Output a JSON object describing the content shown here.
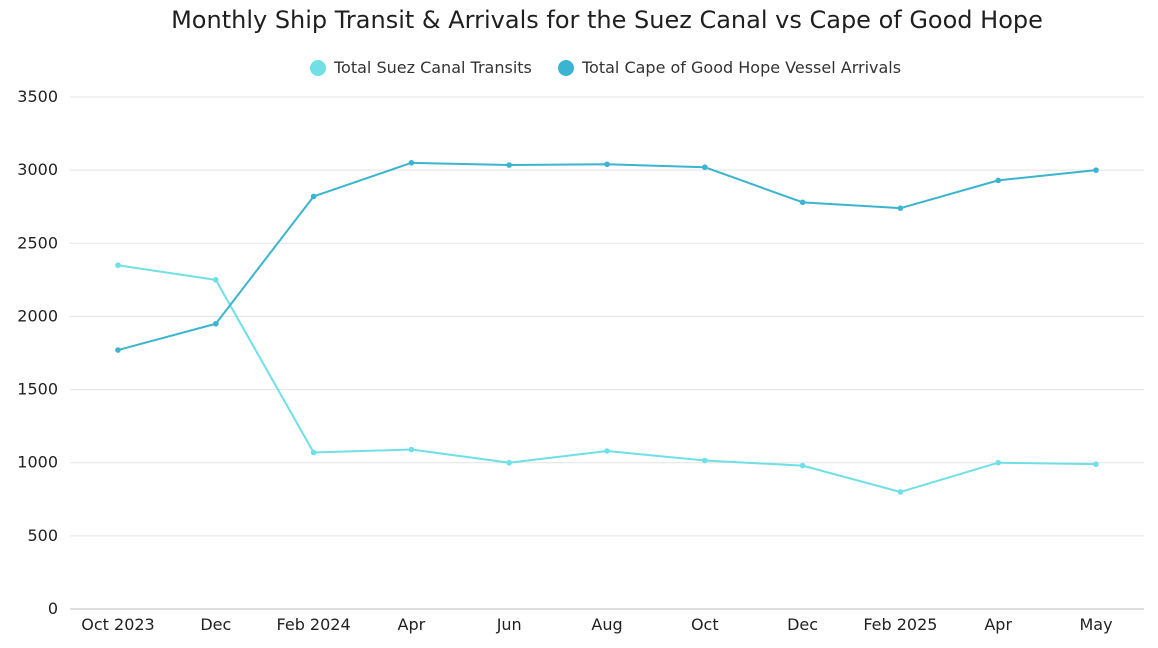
{
  "chart_data": {
    "type": "line",
    "title": "Monthly Ship Transit & Arrivals for the Suez Canal vs Cape of Good Hope",
    "xlabel": "",
    "ylabel": "",
    "categories": [
      "Oct 2023",
      "Dec",
      "Feb 2024",
      "Apr",
      "Jun",
      "Aug",
      "Oct",
      "Dec",
      "Feb 2025",
      "Apr",
      "May"
    ],
    "ylim": [
      0,
      3500
    ],
    "yticks": [
      0,
      500,
      1000,
      1500,
      2000,
      2500,
      3000,
      3500
    ],
    "grid": true,
    "legend_position": "top-center",
    "series": [
      {
        "name": "Total Suez Canal Transits",
        "color": "#6EE0E6",
        "values": [
          2350,
          2250,
          1070,
          1090,
          1000,
          1080,
          1015,
          980,
          800,
          1000,
          990
        ]
      },
      {
        "name": "Total Cape of Good Hope Vessel Arrivals",
        "color": "#3AB4D0",
        "values": [
          1770,
          1950,
          2820,
          3050,
          3035,
          3040,
          3020,
          2780,
          2740,
          2930,
          3000
        ]
      }
    ]
  }
}
